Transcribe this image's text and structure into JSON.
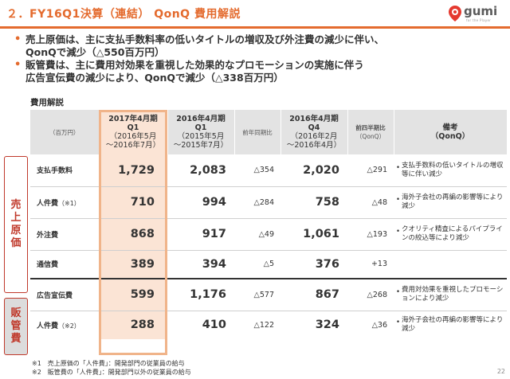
{
  "header": {
    "title": "２．FY16Q1決算（連結） QonQ 費用解説",
    "logo_text": "gumi",
    "logo_sub": "for the Player"
  },
  "bullets": [
    "売上原価は、主に支払手数料率の低いタイトルの増収及び外注費の減少に伴い、",
    "QonQで減少（△550百万円）",
    "販管費は、主に費用対効果を重視した効果的なプロモーションの実施に伴う",
    "広告宣伝費の減少により、QonQで減少（△338百万円）"
  ],
  "table_title": "費用解説",
  "side_labels": {
    "sales": [
      "売",
      "上",
      "原",
      "価"
    ],
    "sga": [
      "販",
      "管",
      "費"
    ]
  },
  "table": {
    "headers": {
      "unit": "（百万円）",
      "col1_line1": "2017年4月期",
      "col1_line2": "Q1",
      "col1_line3": "（2016年5月",
      "col1_line4": "～2016年7月）",
      "col2_line1": "2016年4月期",
      "col2_line2": "Q1",
      "col2_line3": "（2015年5月",
      "col2_line4": "～2015年7月）",
      "col3": "前年同期比",
      "col4_line1": "2016年4月期",
      "col4_line2": "Q4",
      "col4_line3": "（2016年2月",
      "col4_line4": "～2016年4月）",
      "col5_line1": "前四半期比",
      "col5_line2": "（QonQ）",
      "col6_line1": "備考",
      "col6_line2": "（QonQ）"
    },
    "rows": [
      {
        "label": "支払手数料",
        "note": "",
        "q1_2017": "1,729",
        "q1_2016": "2,083",
        "yoy": "△354",
        "q4_2016": "2,020",
        "qoq": "△291",
        "remark": "支払手数料の低いタイトルの増収等に伴い減少"
      },
      {
        "label": "人件費",
        "note": "（※1）",
        "q1_2017": "710",
        "q1_2016": "994",
        "yoy": "△284",
        "q4_2016": "758",
        "qoq": "△48",
        "remark": "海外子会社の再編の影響等により減少"
      },
      {
        "label": "外注費",
        "note": "",
        "q1_2017": "868",
        "q1_2016": "917",
        "yoy": "△49",
        "q4_2016": "1,061",
        "qoq": "△193",
        "remark": "クオリティ精査によるパイプラインの絞込等により減少"
      },
      {
        "label": "通信費",
        "note": "",
        "q1_2017": "389",
        "q1_2016": "394",
        "yoy": "△5",
        "q4_2016": "376",
        "qoq": "+13",
        "remark": ""
      },
      {
        "label": "広告宣伝費",
        "note": "",
        "q1_2017": "599",
        "q1_2016": "1,176",
        "yoy": "△577",
        "q4_2016": "867",
        "qoq": "△268",
        "remark": "費用対効果を重視したプロモーションにより減少"
      },
      {
        "label": "人件費",
        "note": "（※2）",
        "q1_2017": "288",
        "q1_2016": "410",
        "yoy": "△122",
        "q4_2016": "324",
        "qoq": "△36",
        "remark": "海外子会社の再編の影響等により減少"
      }
    ]
  },
  "footnotes": [
    "※1　売上原価の「人件費」：開発部門の従業員の給与",
    "※2　販管費の「人件費」：開発部門以外の従業員の給与"
  ],
  "page_number": "22",
  "colors": {
    "accent": "#e46b2e",
    "highlight": "#fbe4d5",
    "side_border": "#c0392b"
  }
}
